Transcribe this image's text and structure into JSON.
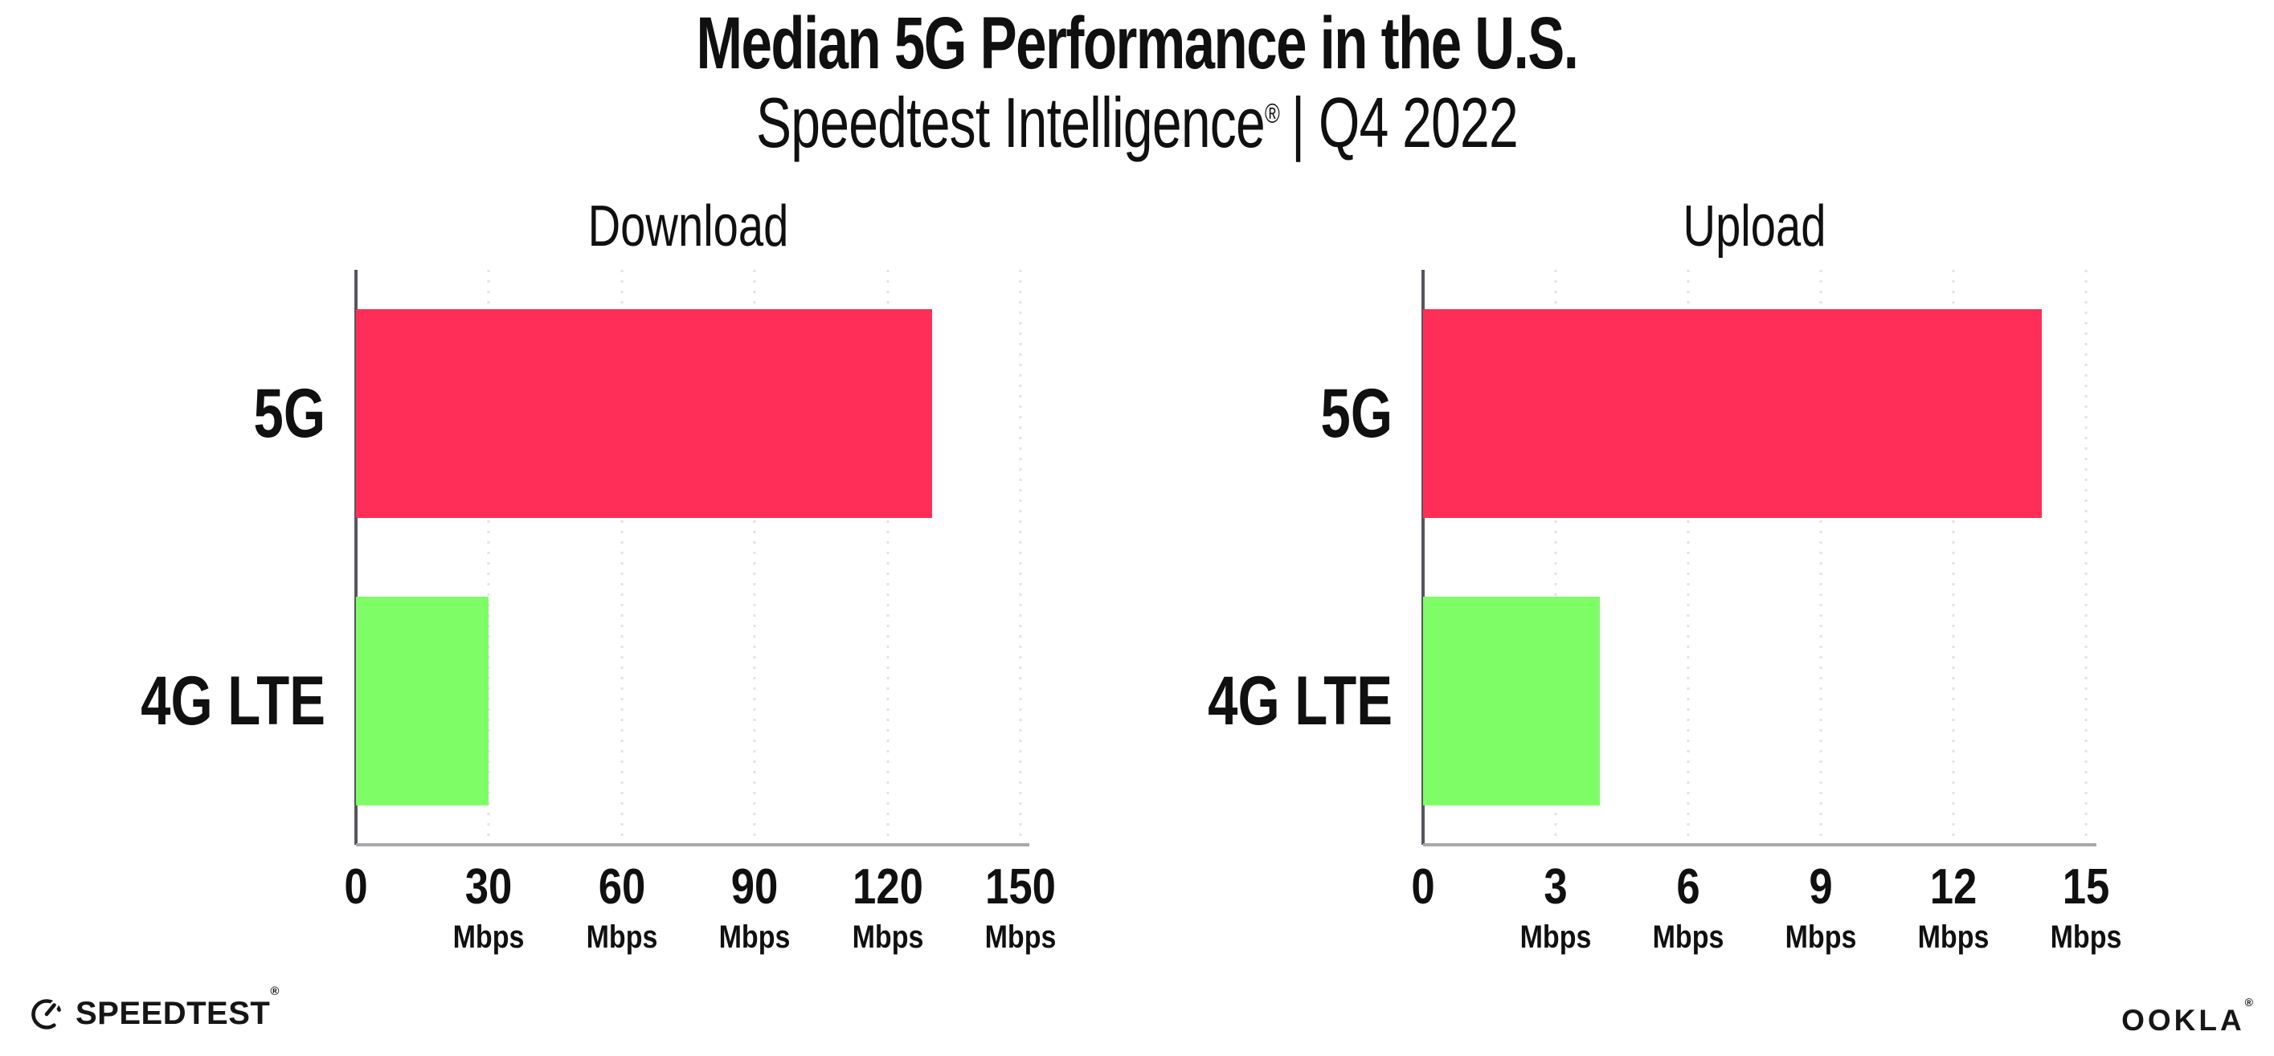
{
  "header": {
    "title": "Median 5G Performance in the U.S.",
    "subtitle_main": "Speedtest Intelligence",
    "subtitle_reg": "®",
    "subtitle_rest": "| Q4 2022"
  },
  "colors": {
    "bar_5g": "#ff2e58",
    "bar_4g_lte": "#7ffd66",
    "gridline": "#e2e2ee",
    "x_axis_line": "#a9a9a9",
    "y_axis_line": "#55555e",
    "text": "#101010"
  },
  "chart_data": [
    {
      "type": "bar",
      "orientation": "horizontal",
      "title": "Download",
      "categories": [
        "5G",
        "4G LTE"
      ],
      "values": [
        130,
        30
      ],
      "unit": "Mbps",
      "xlabel": "",
      "ylabel": "",
      "xlim": [
        0,
        150
      ],
      "ticks": [
        0,
        30,
        60,
        90,
        120,
        150
      ],
      "grid": "dotted-vertical",
      "legend": "none"
    },
    {
      "type": "bar",
      "orientation": "horizontal",
      "title": "Upload",
      "categories": [
        "5G",
        "4G LTE"
      ],
      "values": [
        14,
        4
      ],
      "unit": "Mbps",
      "xlabel": "",
      "ylabel": "",
      "xlim": [
        0,
        15
      ],
      "ticks": [
        0,
        3,
        6,
        9,
        12,
        15
      ],
      "grid": "dotted-vertical",
      "legend": "none"
    }
  ],
  "footer": {
    "speedtest_label": "SPEEDTEST",
    "speedtest_reg": "®",
    "ookla_label": "OOKLA",
    "ookla_reg": "®"
  }
}
